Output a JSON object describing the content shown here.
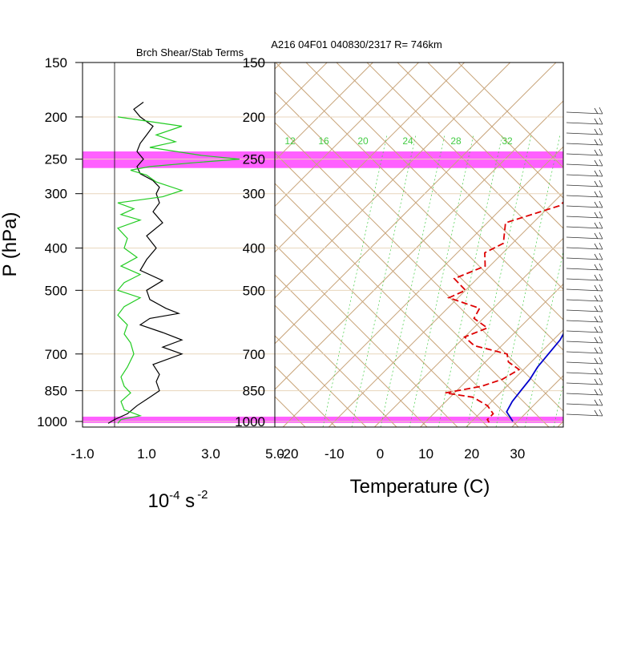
{
  "header": {
    "left_title": "Brch Shear/Stab Terms",
    "right_title": "A216 04F01 040830/2317 R= 746km"
  },
  "axes": {
    "y_label": "P (hPa)",
    "x_label": "Temperature (C)",
    "left_units_main": "10",
    "left_units_exp": "-4",
    "left_units_s": " s",
    "left_units_exp2": "-2"
  },
  "colors": {
    "shear": "#000000",
    "stab": "#22cc22",
    "temperature": "#0000cc",
    "dewpoint": "#dd0000",
    "skew_grid": "#c8a47a",
    "mixing_ratio": "#44cc44",
    "highlight": "#ff44ff"
  },
  "chart_data": [
    {
      "type": "line",
      "title": "Brch Shear/Stab Terms",
      "ylabel": "P (hPa)",
      "y_scale": "log-pressure",
      "ylim": [
        1030,
        150
      ],
      "xlim": [
        -1.0,
        5.0
      ],
      "pressure_ticks": [
        150,
        200,
        250,
        300,
        400,
        500,
        700,
        850,
        1000
      ],
      "x_ticks": [
        "-1.0",
        "1.0",
        "3.0",
        "5.0"
      ],
      "x_tick_values": [
        -1.0,
        1.0,
        3.0,
        5.0
      ],
      "highlight_bands": [
        [
          240,
          262
        ],
        [
          975,
          1008
        ]
      ],
      "series": [
        {
          "key": "shear",
          "color": "#000000",
          "points": [
            [
              185,
              0.9
            ],
            [
              192,
              0.6
            ],
            [
              200,
              0.8
            ],
            [
              210,
              1.2
            ],
            [
              220,
              1.0
            ],
            [
              230,
              0.8
            ],
            [
              240,
              0.7
            ],
            [
              250,
              0.9
            ],
            [
              260,
              0.7
            ],
            [
              270,
              0.8
            ],
            [
              280,
              1.2
            ],
            [
              290,
              1.4
            ],
            [
              300,
              1.3
            ],
            [
              315,
              1.4
            ],
            [
              330,
              1.2
            ],
            [
              350,
              1.5
            ],
            [
              375,
              1.0
            ],
            [
              400,
              1.3
            ],
            [
              425,
              1.0
            ],
            [
              450,
              0.8
            ],
            [
              475,
              1.5
            ],
            [
              500,
              1.0
            ],
            [
              525,
              1.1
            ],
            [
              550,
              1.6
            ],
            [
              565,
              2.0
            ],
            [
              580,
              1.1
            ],
            [
              600,
              0.8
            ],
            [
              625,
              1.5
            ],
            [
              650,
              2.1
            ],
            [
              675,
              1.5
            ],
            [
              700,
              2.1
            ],
            [
              740,
              1.2
            ],
            [
              780,
              1.4
            ],
            [
              810,
              1.3
            ],
            [
              850,
              1.4
            ],
            [
              880,
              1.1
            ],
            [
              920,
              0.7
            ],
            [
              960,
              0.4
            ],
            [
              990,
              0.0
            ],
            [
              1010,
              -0.2
            ]
          ]
        },
        {
          "key": "stab",
          "color": "#22cc22",
          "points": [
            [
              200,
              0.1
            ],
            [
              210,
              2.1
            ],
            [
              220,
              1.3
            ],
            [
              228,
              1.9
            ],
            [
              235,
              1.1
            ],
            [
              245,
              2.7
            ],
            [
              250,
              3.9
            ],
            [
              255,
              2.4
            ],
            [
              260,
              1.1
            ],
            [
              265,
              0.5
            ],
            [
              272,
              1.0
            ],
            [
              282,
              1.3
            ],
            [
              295,
              2.1
            ],
            [
              305,
              1.5
            ],
            [
              315,
              0.1
            ],
            [
              325,
              0.6
            ],
            [
              335,
              0.2
            ],
            [
              345,
              0.8
            ],
            [
              360,
              0.1
            ],
            [
              380,
              0.4
            ],
            [
              400,
              0.3
            ],
            [
              420,
              0.7
            ],
            [
              440,
              0.2
            ],
            [
              460,
              0.8
            ],
            [
              480,
              0.3
            ],
            [
              500,
              0.1
            ],
            [
              520,
              0.8
            ],
            [
              545,
              0.3
            ],
            [
              570,
              0.1
            ],
            [
              600,
              0.4
            ],
            [
              630,
              0.3
            ],
            [
              660,
              0.5
            ],
            [
              700,
              0.6
            ],
            [
              750,
              0.4
            ],
            [
              790,
              0.2
            ],
            [
              830,
              0.3
            ],
            [
              860,
              0.5
            ],
            [
              900,
              0.2
            ],
            [
              940,
              0.3
            ],
            [
              970,
              0.8
            ],
            [
              990,
              0.2
            ],
            [
              1010,
              0.1
            ]
          ]
        }
      ]
    },
    {
      "type": "line",
      "title": "A216 04F01 040830/2317 R= 746km",
      "xlabel": "Temperature (C)",
      "ylabel": "P (hPa)",
      "y_scale": "log-pressure",
      "ylim": [
        1030,
        150
      ],
      "xlim": [
        -23,
        40
      ],
      "pressure_ticks": [
        150,
        200,
        250,
        300,
        400,
        500,
        700,
        850,
        1000
      ],
      "x_ticks": [
        "-20",
        "-10",
        "0",
        "10",
        "20",
        "30"
      ],
      "x_tick_values": [
        -20,
        -10,
        0,
        10,
        20,
        30
      ],
      "mixing_ratio_labels": [
        "12",
        "16",
        "20",
        "24",
        "28",
        "32"
      ],
      "highlight_bands": [
        [
          240,
          262
        ],
        [
          975,
          1008
        ]
      ],
      "series": [
        {
          "key": "temperature",
          "color": "#0000cc",
          "points": [
            [
              180,
              -2.0
            ],
            [
              200,
              0.0
            ],
            [
              230,
              2.0
            ],
            [
              250,
              4.0
            ],
            [
              275,
              6.5
            ],
            [
              300,
              9.0
            ],
            [
              350,
              10.0
            ],
            [
              400,
              12.0
            ],
            [
              450,
              14.0
            ],
            [
              500,
              16.0
            ],
            [
              550,
              18.0
            ],
            [
              600,
              20.0
            ],
            [
              650,
              21.5
            ],
            [
              700,
              22.0
            ],
            [
              750,
              22.5
            ],
            [
              800,
              23.5
            ],
            [
              850,
              24.0
            ],
            [
              900,
              24.5
            ],
            [
              950,
              25.5
            ],
            [
              1000,
              29.0
            ]
          ]
        },
        {
          "key": "dewpoint",
          "color": "#dd0000",
          "dashed": true,
          "points": [
            [
              205,
              -10.0
            ],
            [
              225,
              -8.0
            ],
            [
              240,
              -4.0
            ],
            [
              255,
              -3.0
            ],
            [
              270,
              -5.0
            ],
            [
              300,
              -7.5
            ],
            [
              320,
              -8.0
            ],
            [
              350,
              -16.0
            ],
            [
              390,
              -12.0
            ],
            [
              410,
              -14.0
            ],
            [
              440,
              -11.0
            ],
            [
              470,
              -15.0
            ],
            [
              500,
              -10.0
            ],
            [
              520,
              -12.0
            ],
            [
              550,
              -3.0
            ],
            [
              580,
              -2.0
            ],
            [
              610,
              3.0
            ],
            [
              640,
              0.0
            ],
            [
              670,
              4.0
            ],
            [
              700,
              13.0
            ],
            [
              730,
              15.0
            ],
            [
              760,
              19.0
            ],
            [
              800,
              17.5
            ],
            [
              830,
              14.5
            ],
            [
              860,
              8.0
            ],
            [
              880,
              15.0
            ],
            [
              920,
              20.0
            ],
            [
              960,
              23.0
            ],
            [
              990,
              23.0
            ],
            [
              1005,
              24.0
            ]
          ]
        }
      ]
    }
  ]
}
